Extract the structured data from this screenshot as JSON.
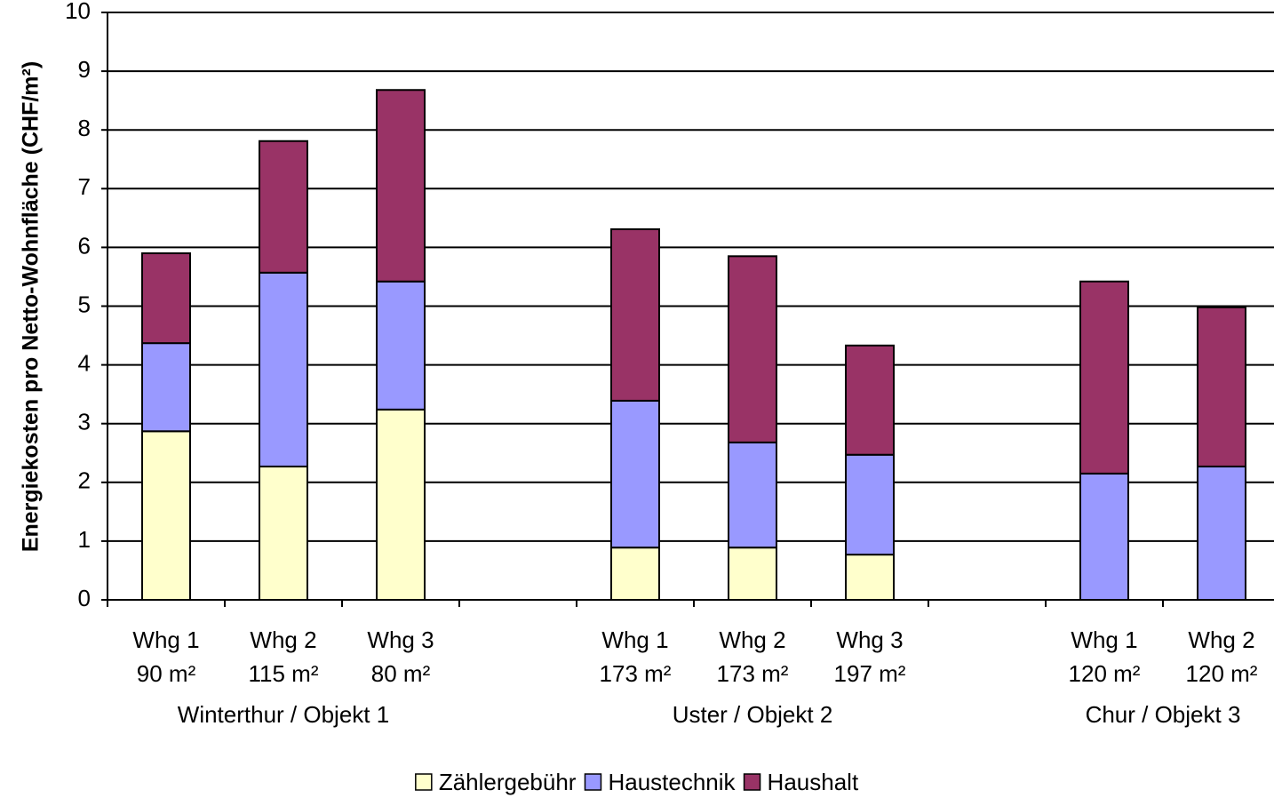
{
  "chart_data": {
    "type": "stacked_bar",
    "y_label": "Energiekosten pro Netto-Wohnfläche (CHF/m²)",
    "categories": [
      "Whg 1",
      "Whg 2",
      "Whg 3",
      null,
      "Whg 1",
      "Whg 2",
      "Whg 3",
      null,
      "Whg 1",
      "Whg 2"
    ],
    "areas": [
      "90 m²",
      "115 m²",
      "80 m²",
      null,
      "173 m²",
      "173 m²",
      "197 m²",
      null,
      "120 m²",
      "120 m²"
    ],
    "groups": [
      "Winterthur / Objekt 1",
      "Uster / Objekt 2",
      "Chur / Objekt 3"
    ],
    "series": [
      {
        "name": "Zählergebühr",
        "color": "#ffffcc",
        "values": [
          2.87,
          2.27,
          3.24,
          null,
          0.89,
          0.89,
          0.77,
          null,
          0,
          0
        ]
      },
      {
        "name": "Haustechnik",
        "color": "#9999ff",
        "values": [
          1.5,
          3.3,
          2.18,
          null,
          2.5,
          1.79,
          1.7,
          null,
          2.15,
          2.27
        ]
      },
      {
        "name": "Haushalt",
        "color": "#993366",
        "values": [
          1.53,
          2.24,
          3.26,
          null,
          2.92,
          3.17,
          1.86,
          null,
          3.27,
          2.71
        ]
      }
    ],
    "ylim": [
      0,
      10
    ],
    "yticks": [
      0,
      1,
      2,
      3,
      4,
      5,
      6,
      7,
      8,
      9,
      10
    ],
    "grid": true,
    "legend": "bottom"
  }
}
